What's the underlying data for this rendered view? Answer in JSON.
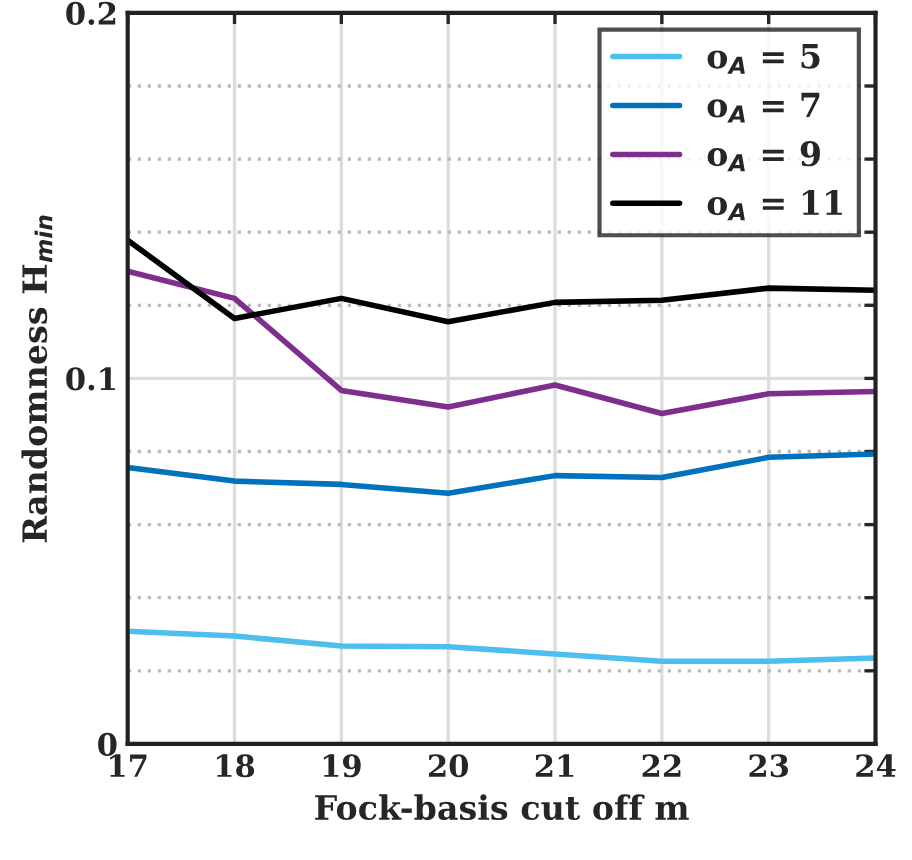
{
  "chart_data": {
    "type": "line",
    "xlabel": "Fock-basis cut off m",
    "ylabel": "Randomness H$_{min}$",
    "x": [
      17,
      18,
      19,
      20,
      21,
      22,
      23,
      24
    ],
    "series": [
      {
        "name": "o$_{A}$ = 5",
        "color": "#4dbeee",
        "values": [
          0.0308,
          0.0295,
          0.0268,
          0.0266,
          0.0246,
          0.0226,
          0.0226,
          0.0235
        ]
      },
      {
        "name": "o$_{A}$ = 7",
        "color": "#0072bd",
        "values": [
          0.0756,
          0.0719,
          0.071,
          0.0686,
          0.0734,
          0.0729,
          0.0784,
          0.0793
        ]
      },
      {
        "name": "o$_{A}$ = 9",
        "color": "#7e2f8e",
        "values": [
          0.1293,
          0.1219,
          0.0967,
          0.0922,
          0.0982,
          0.0904,
          0.0958,
          0.0964
        ]
      },
      {
        "name": "o$_{A}$ = 11",
        "color": "#000000",
        "values": [
          0.1378,
          0.1164,
          0.1219,
          0.1155,
          0.1208,
          0.1214,
          0.1247,
          0.1241
        ]
      }
    ],
    "xlim": [
      17,
      24
    ],
    "xticks": [
      17,
      18,
      19,
      20,
      21,
      22,
      23,
      24
    ],
    "ylim": [
      0,
      0.2
    ],
    "yticks": [
      0,
      {
        "value": 0.02,
        "label": null
      },
      {
        "value": 0.04,
        "label": null
      },
      {
        "value": 0.06,
        "label": null
      },
      {
        "value": 0.08,
        "label": null
      },
      {
        "value": 0.1,
        "label": "0.1"
      },
      {
        "value": 0.12,
        "label": null
      },
      {
        "value": 0.14,
        "label": null
      },
      {
        "value": 0.16,
        "label": null
      },
      {
        "value": 0.18,
        "label": null
      },
      {
        "value": 0.2,
        "label": "0.2"
      }
    ],
    "grid": true,
    "legend": "top right",
    "marker": "none",
    "line_style": "solid"
  }
}
